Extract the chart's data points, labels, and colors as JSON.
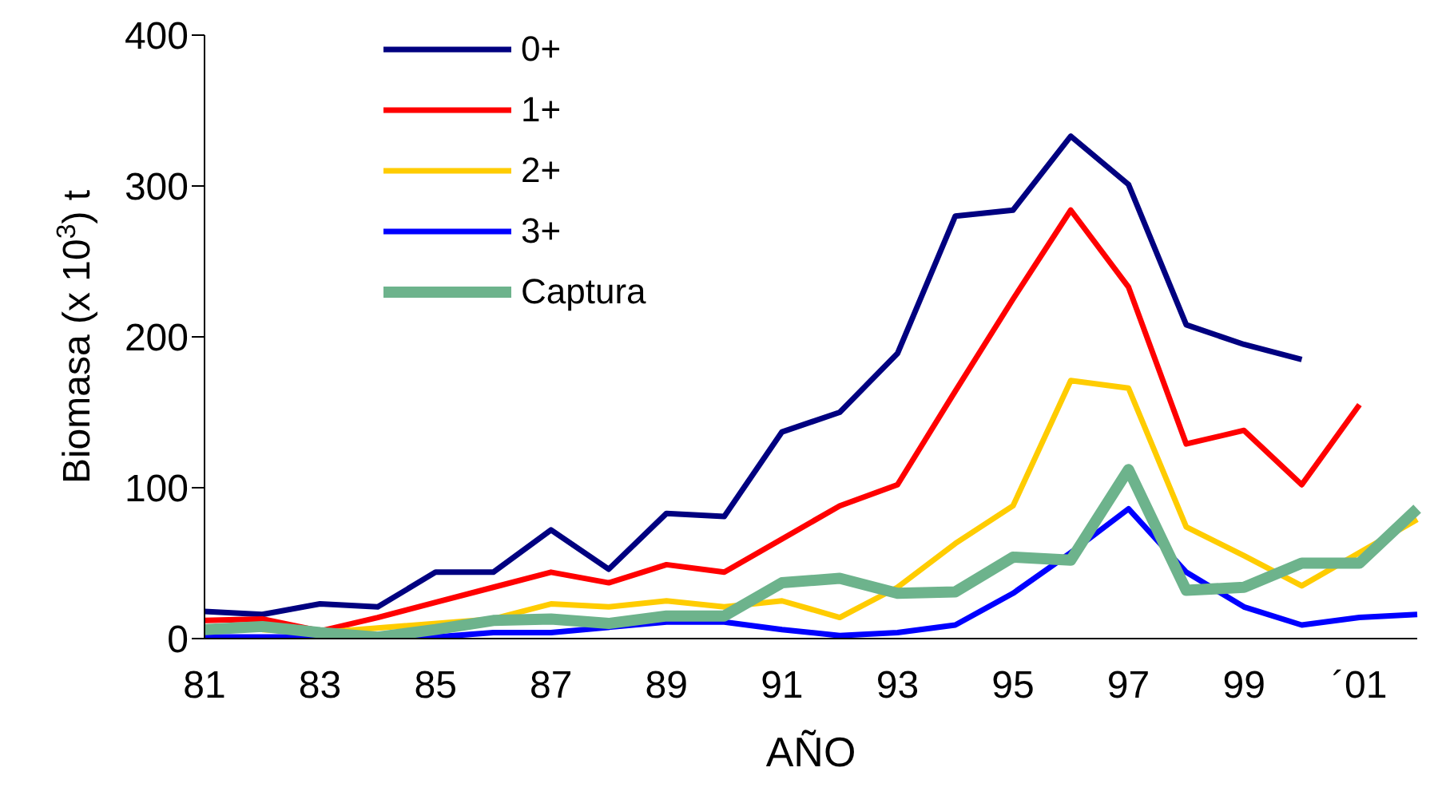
{
  "chart_data": {
    "type": "line",
    "xlabel": "AÑO",
    "ylabel": "Biomasa (x 10$^{3}$) t",
    "categories": [
      "81",
      null,
      "83",
      null,
      "85",
      null,
      "87",
      null,
      "89",
      null,
      "91",
      null,
      "93",
      null,
      "95",
      null,
      "97",
      null,
      "99",
      null,
      "´01",
      null
    ],
    "series": [
      {
        "name": "0+",
        "color": "#000080",
        "values": [
          18,
          16,
          23,
          21,
          44,
          44,
          72,
          46,
          83,
          81,
          137,
          150,
          189,
          280,
          284,
          333,
          301,
          208,
          195,
          185,
          null,
          null
        ]
      },
      {
        "name": "1+",
        "color": "#ff0000",
        "values": [
          12,
          13,
          5,
          14,
          24,
          34,
          44,
          37,
          49,
          44,
          66,
          88,
          102,
          164,
          225,
          284,
          233,
          129,
          138,
          102,
          155,
          null
        ]
      },
      {
        "name": "2+",
        "color": "#ffcc00",
        "values": [
          null,
          6,
          4,
          null,
          null,
          13,
          23,
          21,
          25,
          21,
          25,
          14,
          34,
          63,
          88,
          171,
          166,
          74,
          55,
          35,
          null,
          79
        ]
      },
      {
        "name": "3+",
        "color": "#0000ff",
        "values": [
          1,
          1,
          1,
          0,
          1,
          4,
          4,
          null,
          11,
          11,
          6,
          2,
          4,
          9,
          30,
          57,
          86,
          44,
          21,
          9,
          14,
          16
        ]
      },
      {
        "name": "Captura",
        "color": "#6db38c",
        "values": [
          6,
          8,
          4,
          1,
          6,
          12,
          13,
          10,
          15,
          15,
          37,
          40,
          30,
          31,
          54,
          52,
          112,
          32,
          34,
          50,
          50,
          86
        ]
      }
    ],
    "ylim": [
      0,
      400
    ],
    "yticks": [
      0,
      100,
      200,
      300,
      400
    ],
    "grid": false,
    "legend": "top left",
    "marker": "none",
    "line_style": "solid"
  }
}
